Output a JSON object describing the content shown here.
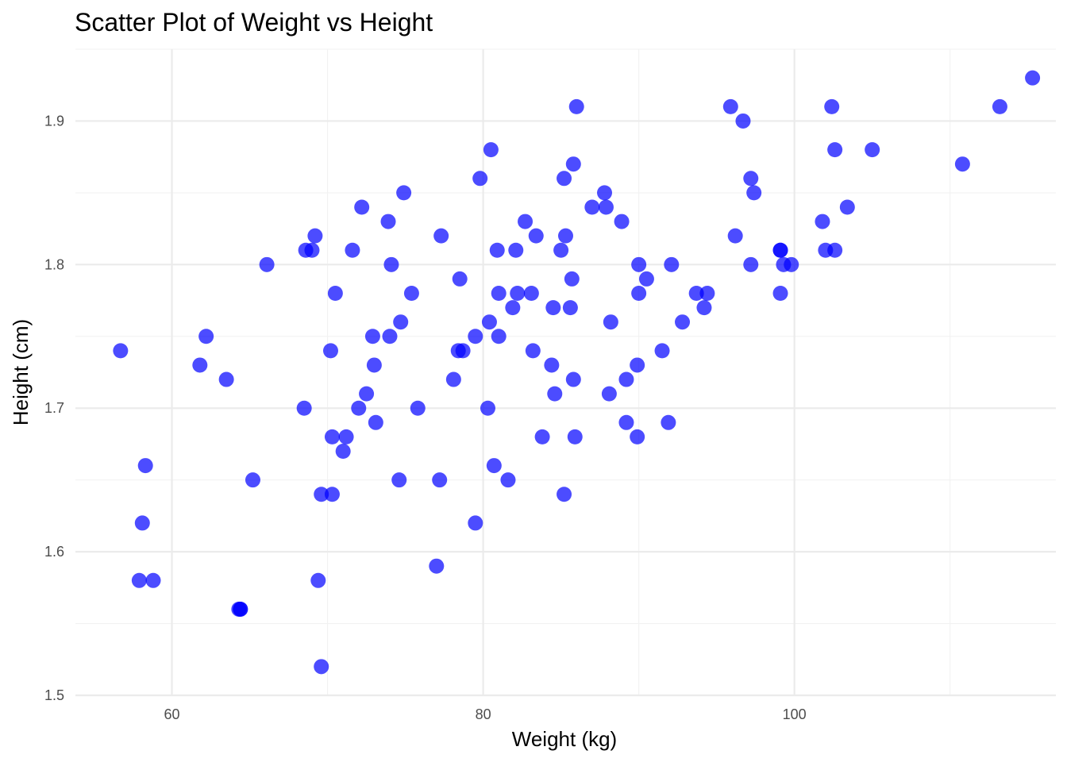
{
  "chart_data": {
    "type": "scatter",
    "title": "Scatter Plot of Weight vs Height",
    "xlabel": "Weight (kg)",
    "ylabel": "Height (cm)",
    "xlim": [
      53.8,
      116.8
    ],
    "ylim": [
      1.5,
      1.95
    ],
    "x_ticks": [
      60,
      80,
      100
    ],
    "x_tick_labels": [
      "60",
      "80",
      "100"
    ],
    "y_ticks": [
      1.5,
      1.6,
      1.7,
      1.8,
      1.9
    ],
    "y_tick_labels": [
      "1.5",
      "1.6",
      "1.7",
      "1.8",
      "1.9"
    ],
    "x_minor_ticks": [
      70,
      90,
      110
    ],
    "y_minor_ticks": [
      1.55,
      1.65,
      1.75,
      1.85
    ],
    "grid": true,
    "legend": "none",
    "point_color": "#0000ff",
    "point_opacity": 0.7,
    "points": [
      {
        "x": 56.7,
        "y": 1.74
      },
      {
        "x": 58.1,
        "y": 1.62
      },
      {
        "x": 58.3,
        "y": 1.66
      },
      {
        "x": 57.9,
        "y": 1.58
      },
      {
        "x": 58.8,
        "y": 1.58
      },
      {
        "x": 61.8,
        "y": 1.73
      },
      {
        "x": 62.2,
        "y": 1.75
      },
      {
        "x": 63.5,
        "y": 1.72
      },
      {
        "x": 64.3,
        "y": 1.56
      },
      {
        "x": 64.4,
        "y": 1.56
      },
      {
        "x": 64.4,
        "y": 1.56
      },
      {
        "x": 65.2,
        "y": 1.65
      },
      {
        "x": 66.1,
        "y": 1.8
      },
      {
        "x": 68.5,
        "y": 1.7
      },
      {
        "x": 68.6,
        "y": 1.81
      },
      {
        "x": 69.0,
        "y": 1.81
      },
      {
        "x": 69.2,
        "y": 1.82
      },
      {
        "x": 69.4,
        "y": 1.58
      },
      {
        "x": 69.6,
        "y": 1.64
      },
      {
        "x": 69.6,
        "y": 1.52
      },
      {
        "x": 70.2,
        "y": 1.74
      },
      {
        "x": 70.3,
        "y": 1.68
      },
      {
        "x": 70.3,
        "y": 1.64
      },
      {
        "x": 70.5,
        "y": 1.78
      },
      {
        "x": 71.0,
        "y": 1.67
      },
      {
        "x": 71.2,
        "y": 1.68
      },
      {
        "x": 71.6,
        "y": 1.81
      },
      {
        "x": 72.0,
        "y": 1.7
      },
      {
        "x": 72.2,
        "y": 1.84
      },
      {
        "x": 72.5,
        "y": 1.71
      },
      {
        "x": 72.9,
        "y": 1.75
      },
      {
        "x": 73.0,
        "y": 1.73
      },
      {
        "x": 73.1,
        "y": 1.69
      },
      {
        "x": 73.9,
        "y": 1.83
      },
      {
        "x": 74.0,
        "y": 1.75
      },
      {
        "x": 74.1,
        "y": 1.8
      },
      {
        "x": 74.7,
        "y": 1.76
      },
      {
        "x": 74.6,
        "y": 1.65
      },
      {
        "x": 74.9,
        "y": 1.85
      },
      {
        "x": 75.4,
        "y": 1.78
      },
      {
        "x": 75.8,
        "y": 1.7
      },
      {
        "x": 77.0,
        "y": 1.59
      },
      {
        "x": 77.2,
        "y": 1.65
      },
      {
        "x": 77.3,
        "y": 1.82
      },
      {
        "x": 78.1,
        "y": 1.72
      },
      {
        "x": 78.4,
        "y": 1.74
      },
      {
        "x": 78.5,
        "y": 1.79
      },
      {
        "x": 78.7,
        "y": 1.74
      },
      {
        "x": 79.5,
        "y": 1.75
      },
      {
        "x": 79.5,
        "y": 1.62
      },
      {
        "x": 79.8,
        "y": 1.86
      },
      {
        "x": 80.3,
        "y": 1.7
      },
      {
        "x": 80.4,
        "y": 1.76
      },
      {
        "x": 80.5,
        "y": 1.88
      },
      {
        "x": 80.7,
        "y": 1.66
      },
      {
        "x": 80.9,
        "y": 1.81
      },
      {
        "x": 81.0,
        "y": 1.78
      },
      {
        "x": 81.0,
        "y": 1.75
      },
      {
        "x": 81.6,
        "y": 1.65
      },
      {
        "x": 81.9,
        "y": 1.77
      },
      {
        "x": 82.1,
        "y": 1.81
      },
      {
        "x": 82.2,
        "y": 1.78
      },
      {
        "x": 82.7,
        "y": 1.83
      },
      {
        "x": 83.1,
        "y": 1.78
      },
      {
        "x": 83.2,
        "y": 1.74
      },
      {
        "x": 83.4,
        "y": 1.82
      },
      {
        "x": 83.8,
        "y": 1.68
      },
      {
        "x": 84.4,
        "y": 1.73
      },
      {
        "x": 84.5,
        "y": 1.77
      },
      {
        "x": 84.6,
        "y": 1.71
      },
      {
        "x": 85.0,
        "y": 1.81
      },
      {
        "x": 85.2,
        "y": 1.86
      },
      {
        "x": 85.2,
        "y": 1.64
      },
      {
        "x": 85.3,
        "y": 1.82
      },
      {
        "x": 85.6,
        "y": 1.77
      },
      {
        "x": 85.7,
        "y": 1.79
      },
      {
        "x": 85.8,
        "y": 1.72
      },
      {
        "x": 85.8,
        "y": 1.87
      },
      {
        "x": 85.9,
        "y": 1.68
      },
      {
        "x": 86.0,
        "y": 1.91
      },
      {
        "x": 87.0,
        "y": 1.84
      },
      {
        "x": 87.8,
        "y": 1.85
      },
      {
        "x": 87.9,
        "y": 1.84
      },
      {
        "x": 88.1,
        "y": 1.71
      },
      {
        "x": 88.2,
        "y": 1.76
      },
      {
        "x": 88.9,
        "y": 1.83
      },
      {
        "x": 89.2,
        "y": 1.72
      },
      {
        "x": 89.2,
        "y": 1.69
      },
      {
        "x": 89.9,
        "y": 1.73
      },
      {
        "x": 89.9,
        "y": 1.68
      },
      {
        "x": 90.0,
        "y": 1.8
      },
      {
        "x": 90.0,
        "y": 1.78
      },
      {
        "x": 90.5,
        "y": 1.79
      },
      {
        "x": 91.5,
        "y": 1.74
      },
      {
        "x": 91.9,
        "y": 1.69
      },
      {
        "x": 92.1,
        "y": 1.8
      },
      {
        "x": 92.8,
        "y": 1.76
      },
      {
        "x": 93.7,
        "y": 1.78
      },
      {
        "x": 94.2,
        "y": 1.77
      },
      {
        "x": 94.4,
        "y": 1.78
      },
      {
        "x": 95.9,
        "y": 1.91
      },
      {
        "x": 96.2,
        "y": 1.82
      },
      {
        "x": 96.7,
        "y": 1.9
      },
      {
        "x": 97.2,
        "y": 1.86
      },
      {
        "x": 97.2,
        "y": 1.8
      },
      {
        "x": 97.4,
        "y": 1.85
      },
      {
        "x": 99.1,
        "y": 1.81
      },
      {
        "x": 99.1,
        "y": 1.81
      },
      {
        "x": 99.1,
        "y": 1.78
      },
      {
        "x": 99.3,
        "y": 1.8
      },
      {
        "x": 99.8,
        "y": 1.8
      },
      {
        "x": 101.8,
        "y": 1.83
      },
      {
        "x": 102.0,
        "y": 1.81
      },
      {
        "x": 102.4,
        "y": 1.91
      },
      {
        "x": 102.6,
        "y": 1.88
      },
      {
        "x": 102.6,
        "y": 1.81
      },
      {
        "x": 103.4,
        "y": 1.84
      },
      {
        "x": 105.0,
        "y": 1.88
      },
      {
        "x": 110.8,
        "y": 1.87
      },
      {
        "x": 113.2,
        "y": 1.91
      },
      {
        "x": 115.3,
        "y": 1.93
      }
    ]
  }
}
